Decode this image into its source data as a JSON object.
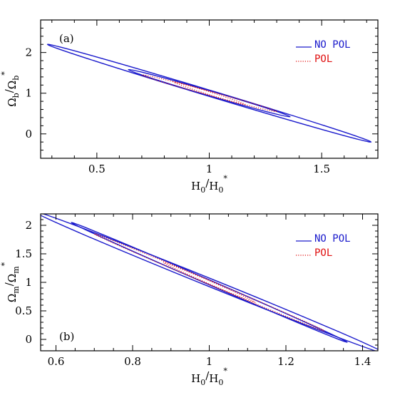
{
  "chart_data": [
    {
      "type": "contour",
      "panel_label": "(a)",
      "xlabel": {
        "base": "H",
        "sub": "0",
        "sep": "/",
        "base2": "H",
        "sub2": "0",
        "sup2": "*"
      },
      "ylabel": {
        "base": "Ω",
        "sub": "b",
        "sep": "/",
        "base2": "Ω",
        "sub2": "b",
        "sup2": "*"
      },
      "xlim": [
        0.25,
        1.75
      ],
      "ylim": [
        -0.6,
        2.8
      ],
      "xticks": [
        0.5,
        1,
        1.5
      ],
      "xtick_labels": [
        "0.5",
        "1",
        "1.5"
      ],
      "yticks": [
        0,
        1,
        2
      ],
      "ytick_labels": [
        "0",
        "1",
        "2"
      ],
      "legend": {
        "position": "top-right",
        "entries": [
          {
            "label": "NO POL",
            "color": "#1a1acc",
            "style": "solid"
          },
          {
            "label": "POL",
            "color": "#e01010",
            "style": "dotted"
          }
        ]
      },
      "series": [
        {
          "name": "NO POL",
          "color": "#1a1acc",
          "style": "solid",
          "ellipses": [
            {
              "center": [
                1.0,
                1.0
              ],
              "end": [
                1.72,
                -0.2
              ],
              "half_width": 0.075
            },
            {
              "center": [
                1.0,
                1.0
              ],
              "end": [
                1.36,
                0.42
              ],
              "half_width": 0.06
            }
          ]
        },
        {
          "name": "POL",
          "color": "#e01010",
          "style": "dotted",
          "ellipses": [
            {
              "center": [
                1.0,
                1.0
              ],
              "end": [
                1.3,
                0.55
              ],
              "half_width": 0.05
            },
            {
              "center": [
                1.0,
                1.0
              ],
              "end": [
                1.16,
                0.72
              ],
              "half_width": 0.035
            }
          ]
        }
      ]
    },
    {
      "type": "contour",
      "panel_label": "(b)",
      "xlabel": {
        "base": "H",
        "sub": "0",
        "sep": "/",
        "base2": "H",
        "sub2": "0",
        "sup2": "*"
      },
      "ylabel": {
        "base": "Ω",
        "sub": "m",
        "sep": "/",
        "base2": "Ω",
        "sub2": "m",
        "sup2": "*"
      },
      "xlim": [
        0.56,
        1.44
      ],
      "ylim": [
        -0.2,
        2.2
      ],
      "xticks": [
        0.6,
        0.8,
        1.0,
        1.2,
        1.4
      ],
      "xtick_labels": [
        "0.6",
        "0.8",
        "1",
        "1.2",
        "1.4"
      ],
      "yticks": [
        0,
        0.5,
        1,
        1.5,
        2
      ],
      "ytick_labels": [
        "0",
        "0.5",
        "1",
        "1.5",
        "2"
      ],
      "legend": {
        "position": "top-right",
        "entries": [
          {
            "label": "NO POL",
            "color": "#1a1acc",
            "style": "solid"
          },
          {
            "label": "POL",
            "color": "#e01010",
            "style": "dotted"
          }
        ]
      },
      "series": [
        {
          "name": "NO POL",
          "color": "#1a1acc",
          "style": "solid",
          "ellipses": [
            {
              "center": [
                1.0,
                1.0
              ],
              "end": [
                1.46,
                -0.25
              ],
              "half_width": 0.07
            },
            {
              "center": [
                1.0,
                1.0
              ],
              "end": [
                1.36,
                -0.05
              ],
              "half_width": 0.04
            }
          ]
        },
        {
          "name": "POL",
          "color": "#e01010",
          "style": "dotted",
          "ellipses": [
            {
              "center": [
                1.0,
                1.0
              ],
              "end": [
                1.3,
                0.15
              ],
              "half_width": 0.035
            },
            {
              "center": [
                1.0,
                1.0
              ],
              "end": [
                1.12,
                0.65
              ],
              "half_width": 0.025
            }
          ]
        }
      ]
    }
  ]
}
